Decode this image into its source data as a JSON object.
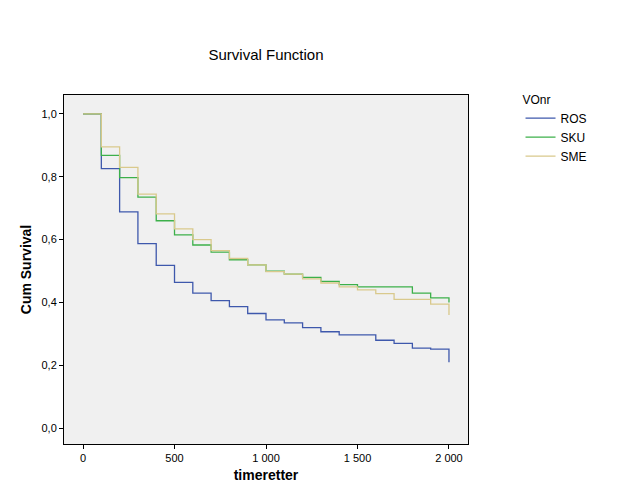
{
  "chart_data": {
    "type": "line",
    "title": "Survival Function",
    "x_label": "timeretter",
    "y_label": "Cum Survival",
    "legend_title": "VOnr",
    "legend": "right",
    "grid": false,
    "line_style": "step",
    "x": [
      0,
      100,
      200,
      300,
      400,
      500,
      600,
      700,
      800,
      900,
      1000,
      1100,
      1200,
      1300,
      1400,
      1500,
      1600,
      1700,
      1800,
      1900,
      2000
    ],
    "series": [
      {
        "name": "ROS",
        "color": "#3e58ac",
        "values": [
          1.0,
          0.826,
          0.688,
          0.587,
          0.518,
          0.464,
          0.43,
          0.406,
          0.387,
          0.365,
          0.345,
          0.335,
          0.32,
          0.307,
          0.297,
          0.297,
          0.28,
          0.27,
          0.255,
          0.252,
          0.21
        ]
      },
      {
        "name": "SKU",
        "color": "#3cb04a",
        "values": [
          1.0,
          0.868,
          0.797,
          0.735,
          0.66,
          0.615,
          0.583,
          0.56,
          0.536,
          0.52,
          0.5,
          0.49,
          0.48,
          0.467,
          0.457,
          0.45,
          0.45,
          0.45,
          0.43,
          0.415,
          0.4
        ]
      },
      {
        "name": "SME",
        "color": "#d9c98c",
        "values": [
          1.0,
          0.895,
          0.83,
          0.745,
          0.682,
          0.634,
          0.6,
          0.565,
          0.54,
          0.52,
          0.498,
          0.49,
          0.475,
          0.462,
          0.45,
          0.44,
          0.428,
          0.41,
          0.41,
          0.395,
          0.36
        ]
      }
    ],
    "xlim": [
      -104,
      2104
    ],
    "xticks": [
      0,
      500,
      {
        "value": 1000,
        "label": "1 000"
      },
      {
        "value": 1500,
        "label": "1 500"
      },
      {
        "value": 2000,
        "label": "2 000"
      }
    ],
    "ylim": [
      -0.05,
      1.06
    ],
    "yticks": [
      {
        "value": 0,
        "label": "0,0"
      },
      {
        "value": 0.2,
        "label": "0,2"
      },
      {
        "value": 0.4,
        "label": "0,4"
      },
      {
        "value": 0.6,
        "label": "0,6"
      },
      {
        "value": 0.8,
        "label": "0,8"
      },
      {
        "value": 1.0,
        "label": "1,0"
      }
    ]
  }
}
